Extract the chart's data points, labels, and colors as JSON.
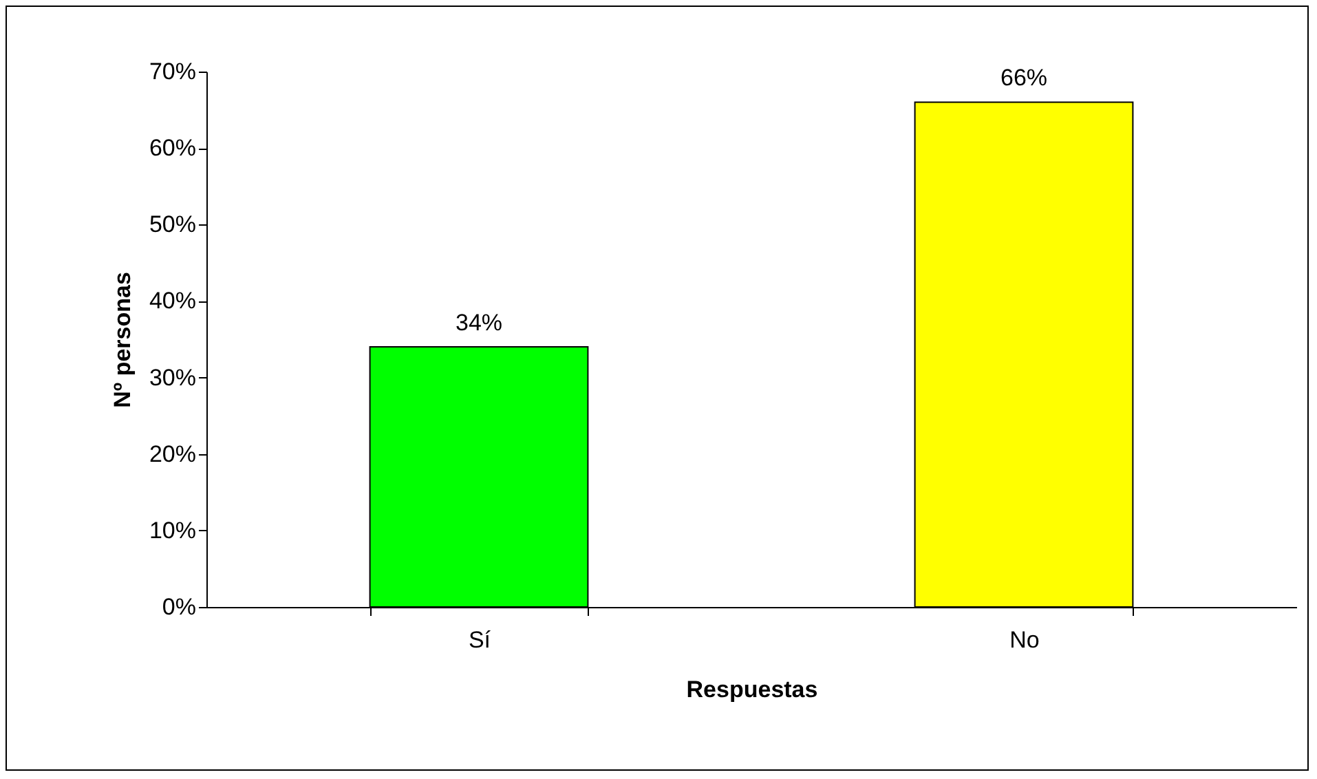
{
  "chart_data": {
    "type": "bar",
    "xlabel": "Respuestas",
    "ylabel": "Nº personas",
    "categories": [
      "Sí",
      "No"
    ],
    "values": [
      34,
      66
    ],
    "colors": [
      "#00ff00",
      "#ffff00"
    ],
    "value_labels": [
      "34%",
      "66%"
    ],
    "ylim": [
      0,
      70
    ],
    "yticks": [
      {
        "value": 0,
        "label": "0%"
      },
      {
        "value": 10,
        "label": "10%"
      },
      {
        "value": 20,
        "label": "20%"
      },
      {
        "value": 30,
        "label": "30%"
      },
      {
        "value": 40,
        "label": "40%"
      },
      {
        "value": 50,
        "label": "50%"
      },
      {
        "value": 60,
        "label": "60%"
      },
      {
        "value": 70,
        "label": "70%"
      }
    ],
    "grid": false
  }
}
